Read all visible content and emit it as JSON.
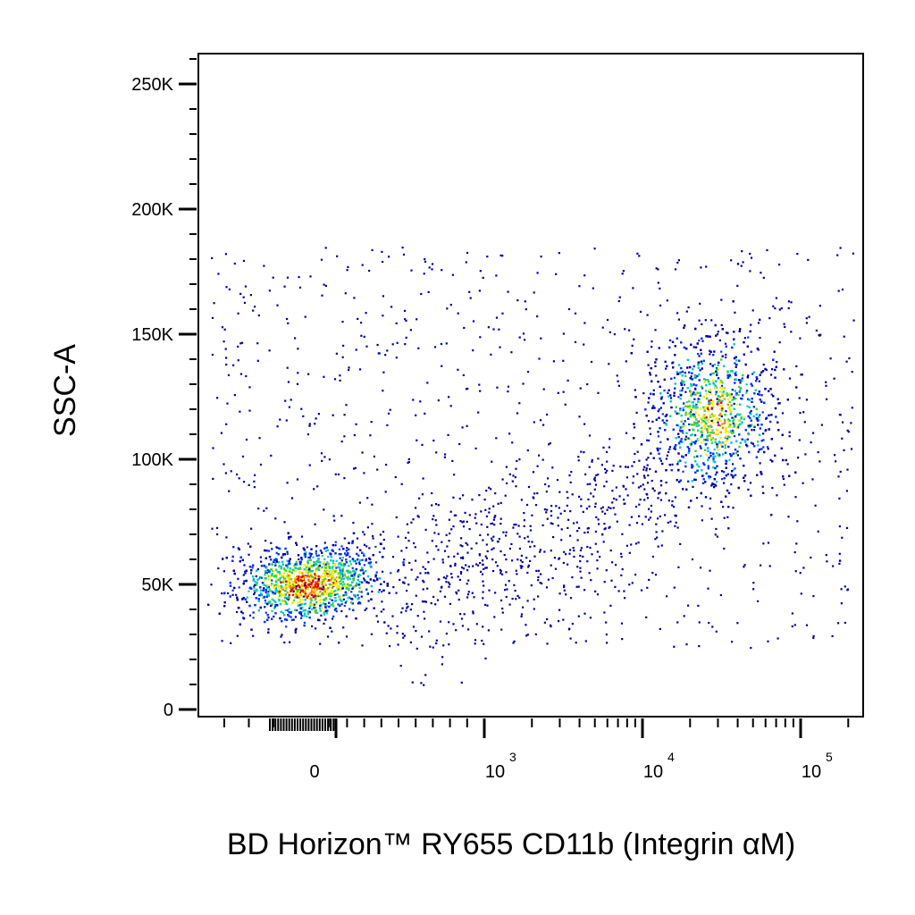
{
  "chart_data": {
    "type": "scatter",
    "subtype": "flow-cytometry-density-dot-plot",
    "title": "",
    "xlabel": "BD Horizon™ RY655 CD11b (Integrin αM)",
    "ylabel": "SSC-A",
    "x_scale": "biexponential",
    "xlim": [
      -300,
      250000
    ],
    "ylim": [
      0,
      262144
    ],
    "x_ticks": [
      {
        "value": 0,
        "label": "0",
        "sup": ""
      },
      {
        "value": 1000,
        "label": "10",
        "sup": "3"
      },
      {
        "value": 10000,
        "label": "10",
        "sup": "4"
      },
      {
        "value": 100000,
        "label": "10",
        "sup": "5"
      }
    ],
    "y_ticks": [
      {
        "value": 0,
        "label": "0"
      },
      {
        "value": 50000,
        "label": "50K"
      },
      {
        "value": 100000,
        "label": "100K"
      },
      {
        "value": 150000,
        "label": "150K"
      },
      {
        "value": 200000,
        "label": "200K"
      },
      {
        "value": 250000,
        "label": "250K"
      }
    ],
    "grid": false,
    "legend": "none",
    "density_colors": [
      "#0000a0",
      "#0030ff",
      "#00c8d0",
      "#40d040",
      "#f0f000",
      "#ff8000",
      "#e00000"
    ],
    "populations": [
      {
        "name": "",
        "x_center": 20,
        "y_center": 50000,
        "count": 3200
      },
      {
        "name": "",
        "x_center": 28000,
        "y_center": 118000,
        "count": 2600
      }
    ]
  }
}
